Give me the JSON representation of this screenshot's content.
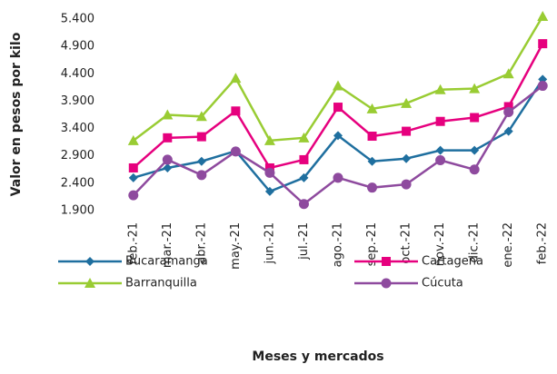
{
  "chart_data": {
    "type": "line",
    "y_label": "Valor en pesos por kilo",
    "x_label": "Meses  y mercados",
    "categories": [
      "feb.-21",
      "mar.-21",
      "abr.-21",
      "may.-21",
      "jun.-21",
      "jul.-21",
      "ago.-21",
      "sep.-21",
      "oct.-21",
      "nov.-21",
      "dic.-21",
      "ene.-22",
      "feb.-22"
    ],
    "series": [
      {
        "name": "Bucaramanga",
        "color": "#1f6f9f",
        "marker": "diamond",
        "values": [
          2500,
          2680,
          2800,
          2990,
          2250,
          2500,
          3270,
          2800,
          2850,
          3000,
          3000,
          3350,
          4300
        ]
      },
      {
        "name": "Cartagena",
        "color": "#e6007e",
        "marker": "square",
        "values": [
          2680,
          3230,
          3250,
          3720,
          2680,
          2830,
          3790,
          3260,
          3350,
          3530,
          3600,
          3800,
          4950
        ]
      },
      {
        "name": "Barranquilla",
        "color": "#99cc33",
        "marker": "triangle",
        "values": [
          3180,
          3650,
          3620,
          4320,
          3180,
          3230,
          4180,
          3760,
          3860,
          4110,
          4130,
          4400,
          5450
        ]
      },
      {
        "name": "Cúcuta",
        "color": "#8e4a9e",
        "marker": "circle",
        "values": [
          2180,
          2830,
          2550,
          2980,
          2590,
          2020,
          2500,
          2320,
          2380,
          2820,
          2650,
          3700,
          4180
        ]
      }
    ],
    "ylim": [
      1900,
      5400
    ],
    "yticks": [
      {
        "value": 1900,
        "label": "1.900"
      },
      {
        "value": 2400,
        "label": "2.400"
      },
      {
        "value": 2900,
        "label": "2.900"
      },
      {
        "value": 3400,
        "label": "3.400"
      },
      {
        "value": 3900,
        "label": "3.900"
      },
      {
        "value": 4400,
        "label": "4.400"
      },
      {
        "value": 4900,
        "label": "4.900"
      },
      {
        "value": 5400,
        "label": "5.400"
      }
    ],
    "grid": false,
    "legend": "bottom"
  }
}
